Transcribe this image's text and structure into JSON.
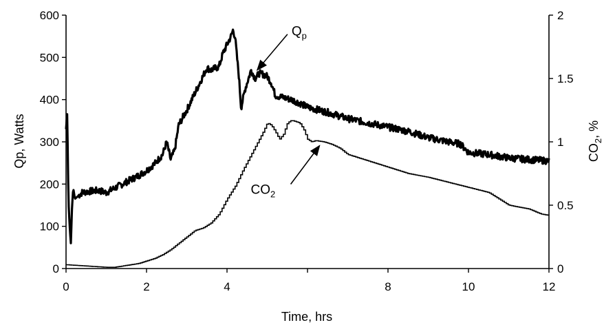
{
  "chart_data": {
    "type": "line",
    "xlabel": "Time, hrs",
    "ylabel_left": "Qp, Watts",
    "ylabel_right": {
      "base": "CO",
      "subscript": "2",
      "suffix": ", %"
    },
    "xlim": [
      0,
      12
    ],
    "ylim_left": [
      0,
      600
    ],
    "ylim_right": [
      0,
      2
    ],
    "x_ticks": [
      0,
      2,
      4,
      6,
      8,
      10,
      12
    ],
    "x_tick_labels": [
      "0",
      "2",
      "4",
      "",
      "8",
      "10",
      "12"
    ],
    "y_left_ticks": [
      0,
      100,
      200,
      300,
      400,
      500,
      600
    ],
    "y_left_tick_labels": [
      "0",
      "100",
      "200",
      "300",
      "400",
      "500",
      "600"
    ],
    "y_right_ticks": [
      0,
      0.5,
      1,
      1.5,
      2
    ],
    "y_right_tick_labels": [
      "0",
      "0.5",
      "1",
      "1.5",
      "2"
    ],
    "grid": false,
    "series": [
      {
        "name": "Qp",
        "axis": "left",
        "color": "#000000",
        "style": "thick-noisy",
        "x": [
          0.0,
          0.03,
          0.06,
          0.09,
          0.12,
          0.15,
          0.18,
          0.22,
          0.28,
          0.4,
          0.6,
          0.8,
          1.0,
          1.2,
          1.4,
          1.6,
          1.8,
          2.0,
          2.2,
          2.4,
          2.5,
          2.6,
          2.7,
          2.8,
          3.0,
          3.2,
          3.4,
          3.5,
          3.6,
          3.8,
          3.9,
          4.0,
          4.1,
          4.15,
          4.2,
          4.3,
          4.35,
          4.45,
          4.55,
          4.6,
          4.7,
          4.8,
          4.9,
          5.0,
          5.1,
          5.2,
          5.4,
          5.6,
          5.8,
          6.0,
          6.5,
          7.0,
          7.5,
          8.0,
          8.5,
          9.0,
          9.5,
          9.8,
          10.0,
          10.5,
          11.0,
          11.5,
          12.0
        ],
        "y": [
          330,
          370,
          160,
          100,
          60,
          150,
          190,
          165,
          170,
          180,
          183,
          185,
          180,
          190,
          200,
          210,
          220,
          232,
          248,
          270,
          300,
          258,
          280,
          340,
          375,
          415,
          455,
          475,
          470,
          478,
          510,
          530,
          550,
          565,
          548,
          450,
          380,
          425,
          455,
          470,
          450,
          462,
          460,
          455,
          440,
          410,
          405,
          400,
          392,
          382,
          370,
          355,
          345,
          335,
          325,
          310,
          300,
          295,
          275,
          270,
          262,
          258,
          255
        ]
      },
      {
        "name": "CO2",
        "axis": "right",
        "color": "#000000",
        "style": "thin-step",
        "x": [
          0.0,
          0.5,
          1.0,
          1.2,
          1.4,
          1.6,
          1.8,
          2.0,
          2.2,
          2.4,
          2.6,
          2.8,
          3.0,
          3.2,
          3.4,
          3.6,
          3.8,
          4.0,
          4.2,
          4.4,
          4.6,
          4.8,
          4.9,
          5.0,
          5.1,
          5.2,
          5.3,
          5.4,
          5.5,
          5.6,
          5.7,
          5.8,
          5.9,
          6.0,
          6.1,
          6.2,
          6.4,
          6.6,
          6.8,
          7.0,
          7.5,
          8.0,
          8.5,
          9.0,
          9.5,
          10.0,
          10.5,
          11.0,
          11.5,
          11.8,
          12.0
        ],
        "y": [
          0.03,
          0.02,
          0.01,
          0.01,
          0.02,
          0.03,
          0.04,
          0.06,
          0.08,
          0.11,
          0.15,
          0.2,
          0.25,
          0.3,
          0.32,
          0.36,
          0.43,
          0.55,
          0.65,
          0.78,
          0.9,
          1.02,
          1.08,
          1.15,
          1.13,
          1.08,
          1.02,
          1.06,
          1.15,
          1.17,
          1.16,
          1.15,
          1.1,
          1.02,
          1.0,
          1.01,
          1.0,
          0.98,
          0.95,
          0.9,
          0.85,
          0.8,
          0.75,
          0.72,
          0.68,
          0.64,
          0.6,
          0.5,
          0.47,
          0.43,
          0.42
        ]
      }
    ],
    "annotations": [
      {
        "base": "Q",
        "subscript": "p",
        "target_series": "Qp",
        "target_x": 4.75,
        "target_y_left": 470
      },
      {
        "base": "CO",
        "subscript": "2",
        "target_series": "CO2",
        "target_x": 6.3,
        "target_y_right": 0.97
      }
    ]
  }
}
